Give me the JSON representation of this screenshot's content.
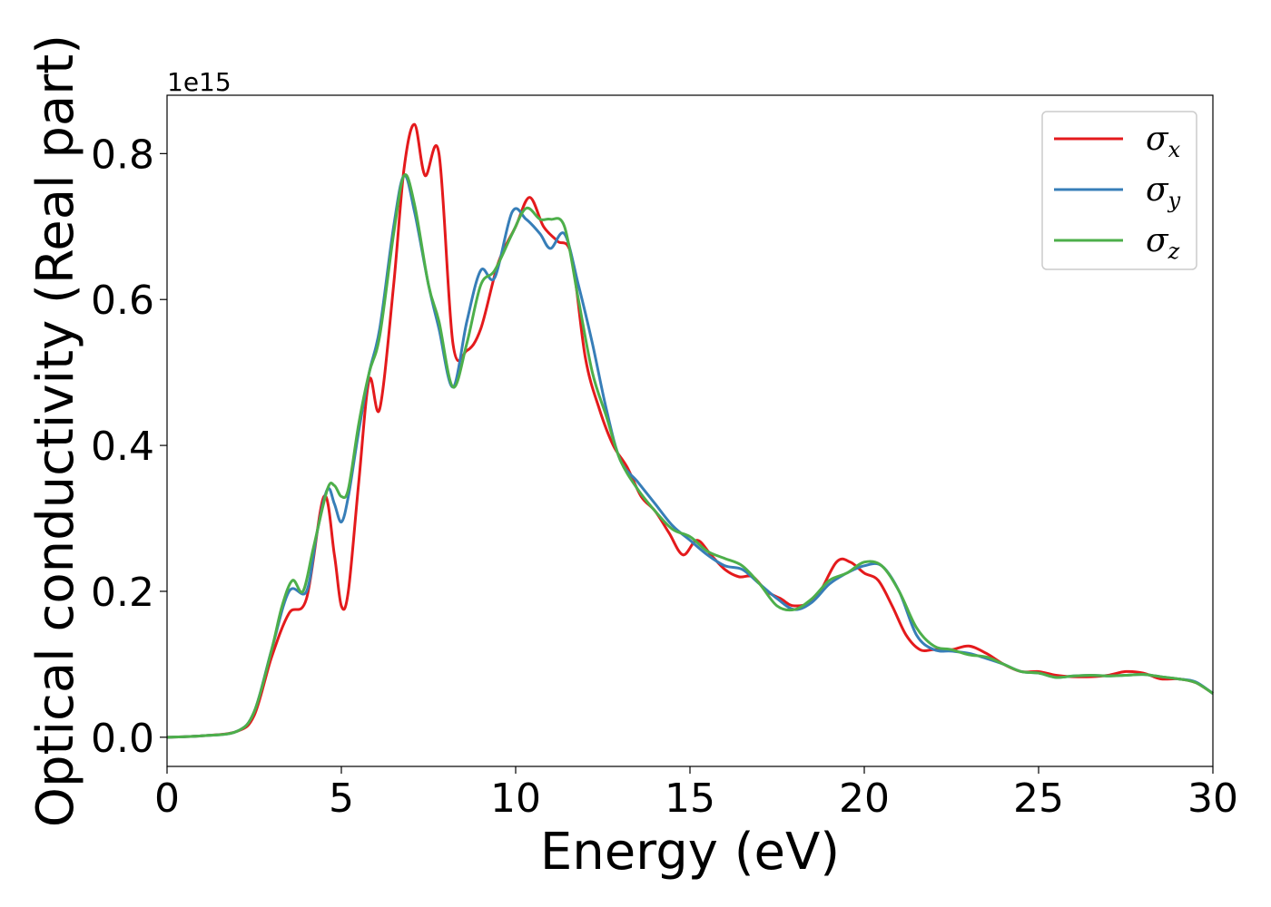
{
  "chart_data": {
    "type": "line",
    "xlabel": "Energy (eV)",
    "ylabel": "Optical conductivity (Real part)",
    "y_offset_label": "1e15",
    "xlim": [
      0,
      30
    ],
    "ylim": [
      -0.04,
      0.88
    ],
    "x_ticks": [
      0,
      5,
      10,
      15,
      20,
      25,
      30
    ],
    "x_tick_labels": [
      "0",
      "5",
      "10",
      "15",
      "20",
      "25",
      "30"
    ],
    "y_ticks": [
      0.0,
      0.2,
      0.4,
      0.6,
      0.8
    ],
    "y_tick_labels": [
      "0.0",
      "0.2",
      "0.4",
      "0.6",
      "0.8"
    ],
    "grid": false,
    "legend_position": "top-right",
    "series": [
      {
        "name": "σx",
        "symbol": "σ",
        "subscript": "x",
        "color": "#e41a1c",
        "x": [
          0,
          1,
          2,
          2.5,
          3,
          3.5,
          4,
          4.5,
          4.8,
          5,
          5.2,
          5.5,
          5.8,
          6.1,
          6.5,
          6.8,
          7.1,
          7.4,
          7.8,
          8.2,
          8.6,
          9,
          9.5,
          10,
          10.4,
          10.8,
          11.2,
          11.6,
          12,
          12.4,
          12.8,
          13.2,
          13.6,
          14,
          14.4,
          14.8,
          15.2,
          15.6,
          16,
          16.4,
          16.8,
          17.2,
          17.6,
          18,
          18.6,
          19.2,
          19.6,
          20,
          20.4,
          20.8,
          21.2,
          21.6,
          22,
          22.5,
          23,
          23.5,
          24,
          24.5,
          25,
          25.5,
          26,
          26.5,
          27,
          27.5,
          28,
          28.5,
          29,
          29.5,
          30
        ],
        "y": [
          0.0,
          0.002,
          0.008,
          0.03,
          0.11,
          0.17,
          0.19,
          0.33,
          0.25,
          0.18,
          0.2,
          0.35,
          0.49,
          0.45,
          0.62,
          0.78,
          0.84,
          0.77,
          0.8,
          0.54,
          0.53,
          0.56,
          0.65,
          0.7,
          0.74,
          0.7,
          0.68,
          0.66,
          0.52,
          0.45,
          0.4,
          0.37,
          0.33,
          0.31,
          0.28,
          0.25,
          0.27,
          0.25,
          0.23,
          0.22,
          0.22,
          0.2,
          0.19,
          0.18,
          0.19,
          0.24,
          0.24,
          0.225,
          0.215,
          0.18,
          0.14,
          0.12,
          0.12,
          0.12,
          0.125,
          0.115,
          0.1,
          0.09,
          0.09,
          0.085,
          0.083,
          0.083,
          0.085,
          0.09,
          0.088,
          0.08,
          0.08,
          0.075,
          0.06
        ]
      },
      {
        "name": "σy",
        "symbol": "σ",
        "subscript": "y",
        "color": "#377eb8",
        "x": [
          0,
          1,
          2,
          2.5,
          3,
          3.5,
          4,
          4.3,
          4.6,
          4.8,
          5,
          5.2,
          5.5,
          5.8,
          6.1,
          6.5,
          6.8,
          7.1,
          7.5,
          7.8,
          8.2,
          8.6,
          9,
          9.4,
          9.9,
          10.3,
          10.7,
          11,
          11.4,
          11.8,
          12.2,
          12.6,
          13,
          13.5,
          14,
          14.5,
          15,
          15.5,
          16,
          16.5,
          17,
          17.5,
          18,
          18.5,
          19,
          19.5,
          20,
          20.5,
          21,
          21.5,
          22,
          22.5,
          23,
          23.5,
          24,
          24.5,
          25,
          25.5,
          26,
          26.5,
          27,
          27.5,
          28,
          28.5,
          29,
          29.5,
          30
        ],
        "y": [
          0.0,
          0.002,
          0.008,
          0.035,
          0.12,
          0.2,
          0.2,
          0.28,
          0.34,
          0.32,
          0.295,
          0.33,
          0.42,
          0.5,
          0.56,
          0.7,
          0.77,
          0.72,
          0.62,
          0.56,
          0.48,
          0.57,
          0.64,
          0.63,
          0.72,
          0.71,
          0.69,
          0.67,
          0.69,
          0.62,
          0.54,
          0.45,
          0.38,
          0.35,
          0.32,
          0.29,
          0.27,
          0.25,
          0.235,
          0.23,
          0.21,
          0.19,
          0.175,
          0.185,
          0.21,
          0.225,
          0.235,
          0.235,
          0.2,
          0.14,
          0.12,
          0.118,
          0.115,
          0.108,
          0.1,
          0.09,
          0.088,
          0.082,
          0.084,
          0.085,
          0.084,
          0.085,
          0.086,
          0.083,
          0.08,
          0.076,
          0.06
        ]
      },
      {
        "name": "σz",
        "symbol": "σ",
        "subscript": "z",
        "color": "#4daf4a",
        "x": [
          0,
          1,
          2,
          2.5,
          3,
          3.3,
          3.6,
          3.9,
          4.2,
          4.6,
          4.8,
          5,
          5.2,
          5.5,
          5.8,
          6.1,
          6.5,
          6.8,
          7.1,
          7.5,
          7.8,
          8.2,
          8.6,
          9,
          9.4,
          9.9,
          10.3,
          10.7,
          11,
          11.4,
          11.8,
          12.2,
          12.6,
          13,
          13.5,
          14,
          14.5,
          15,
          15.5,
          16,
          16.5,
          17,
          17.5,
          18,
          18.5,
          19,
          19.5,
          20,
          20.5,
          21,
          21.5,
          22,
          22.5,
          23,
          23.5,
          24,
          24.5,
          25,
          25.5,
          26,
          26.5,
          27,
          27.5,
          28,
          28.5,
          29,
          29.5,
          30
        ],
        "y": [
          0.0,
          0.002,
          0.008,
          0.035,
          0.12,
          0.18,
          0.215,
          0.2,
          0.26,
          0.34,
          0.345,
          0.33,
          0.34,
          0.43,
          0.5,
          0.55,
          0.69,
          0.77,
          0.73,
          0.62,
          0.57,
          0.48,
          0.54,
          0.62,
          0.64,
          0.69,
          0.725,
          0.71,
          0.71,
          0.7,
          0.6,
          0.5,
          0.44,
          0.38,
          0.34,
          0.31,
          0.285,
          0.275,
          0.255,
          0.245,
          0.235,
          0.21,
          0.18,
          0.175,
          0.19,
          0.215,
          0.225,
          0.24,
          0.235,
          0.2,
          0.15,
          0.125,
          0.12,
          0.113,
          0.11,
          0.1,
          0.09,
          0.088,
          0.082,
          0.084,
          0.085,
          0.084,
          0.085,
          0.086,
          0.083,
          0.08,
          0.075,
          0.06
        ]
      }
    ]
  }
}
